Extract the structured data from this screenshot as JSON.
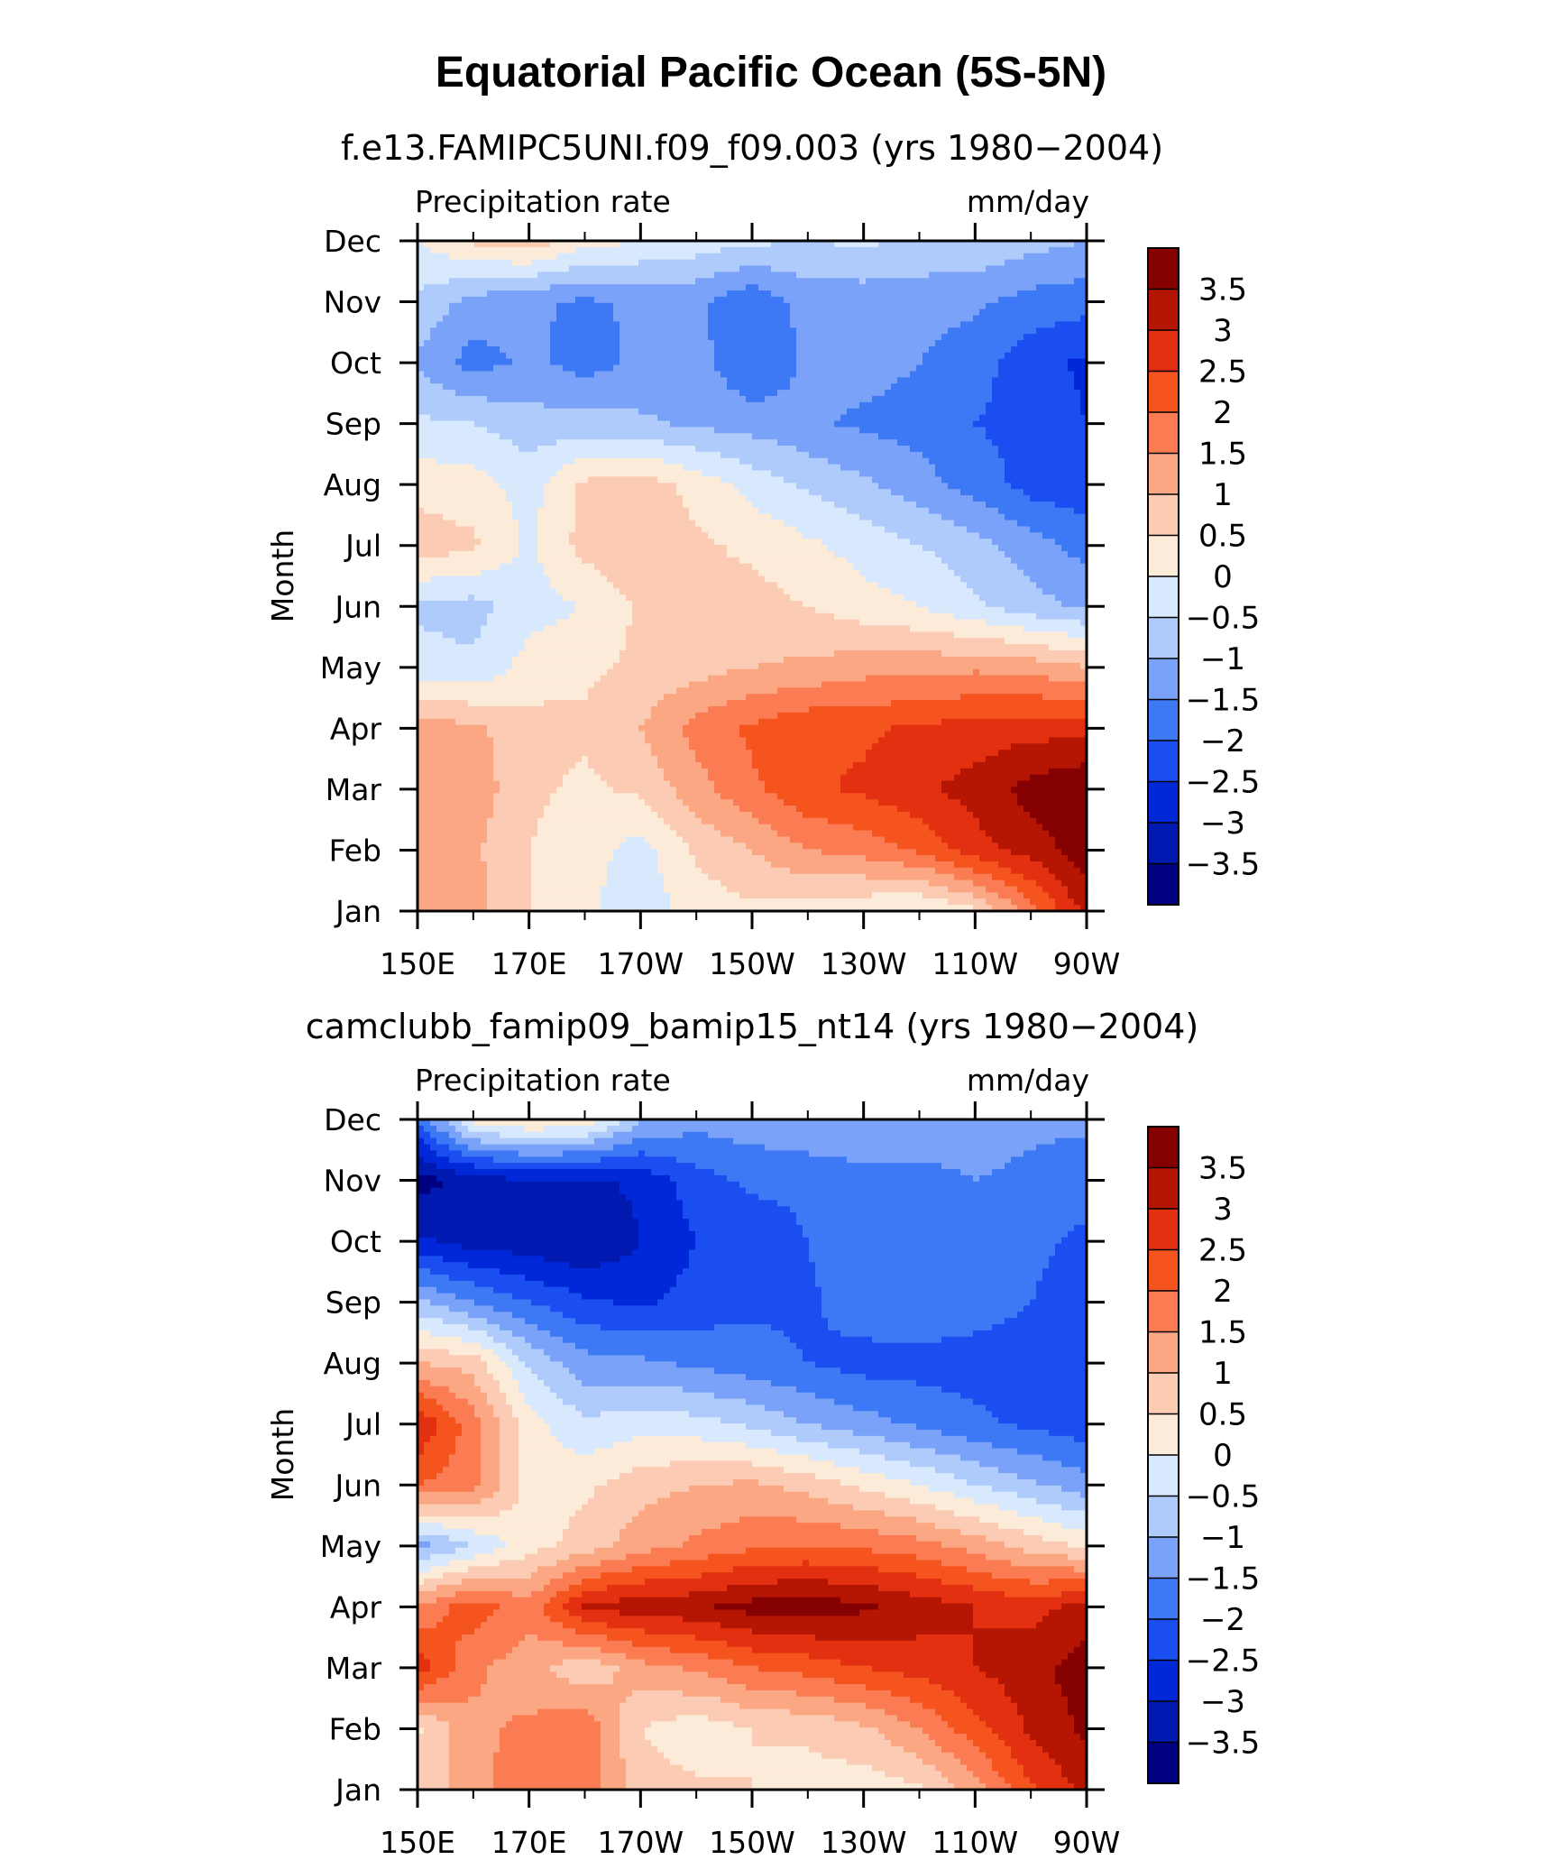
{
  "figure_title": "Equatorial Pacific Ocean (5S-5N)",
  "chart_data": [
    {
      "type": "heatmap",
      "title": "f.e13.FAMIPC5UNI.f09_f09.003 (yrs 1980−2004)",
      "left_label": "Precipitation  rate",
      "right_label": "mm/day",
      "xlabel": "",
      "ylabel": "Month",
      "x_ticks": [
        "150E",
        "170E",
        "170W",
        "150W",
        "130W",
        "110W",
        "90W"
      ],
      "y_ticks": [
        "Jan",
        "Feb",
        "Mar",
        "Apr",
        "May",
        "Jun",
        "Jul",
        "Aug",
        "Sep",
        "Oct",
        "Nov",
        "Dec"
      ],
      "x": [
        150,
        160,
        170,
        180,
        190,
        200,
        210,
        220,
        230,
        240,
        250,
        260,
        270
      ],
      "y": [
        "Jan",
        "Feb",
        "Mar",
        "Apr",
        "May",
        "Jun",
        "Jul",
        "Aug",
        "Sep",
        "Oct",
        "Nov",
        "Dec"
      ],
      "values": [
        [
          1.4,
          1.2,
          0.5,
          0.1,
          -0.3,
          0.2,
          0.4,
          0.3,
          0.1,
          -0.1,
          0.4,
          1.8,
          3.2
        ],
        [
          1.2,
          1.1,
          0.5,
          0.2,
          -0.2,
          0.6,
          1.0,
          1.5,
          1.7,
          2.1,
          2.8,
          3.2,
          3.8
        ],
        [
          1.5,
          1.3,
          0.6,
          0.4,
          0.6,
          1.3,
          1.9,
          2.4,
          2.6,
          2.9,
          3.2,
          3.7,
          4.0
        ],
        [
          1.3,
          1.1,
          0.7,
          0.6,
          1.0,
          1.7,
          2.1,
          2.4,
          2.4,
          2.6,
          2.7,
          2.8,
          2.8
        ],
        [
          -0.3,
          -0.4,
          0.2,
          0.4,
          0.6,
          0.8,
          1.0,
          1.1,
          1.3,
          1.3,
          1.4,
          1.3,
          1.0
        ],
        [
          -0.6,
          -0.7,
          -0.2,
          0.0,
          0.6,
          0.5,
          0.7,
          0.5,
          0.2,
          0.0,
          -0.4,
          -0.8,
          -1.1
        ],
        [
          0.8,
          0.6,
          -0.1,
          0.7,
          0.9,
          0.6,
          0.4,
          0.1,
          -0.2,
          -0.5,
          -0.8,
          -1.3,
          -1.7
        ],
        [
          0.3,
          0.2,
          -0.2,
          0.6,
          0.8,
          0.3,
          -0.2,
          -0.6,
          -0.9,
          -1.3,
          -1.7,
          -2.2,
          -2.3
        ],
        [
          -0.4,
          -0.5,
          -0.8,
          -0.8,
          -0.9,
          -1.1,
          -1.2,
          -1.4,
          -1.6,
          -1.7,
          -2.0,
          -2.2,
          -2.5
        ],
        [
          -1.1,
          -1.7,
          -1.4,
          -1.7,
          -1.4,
          -1.3,
          -2.0,
          -1.4,
          -1.3,
          -1.5,
          -1.8,
          -2.3,
          -2.6
        ],
        [
          -0.6,
          -1.2,
          -1.4,
          -1.6,
          -1.4,
          -1.4,
          -1.9,
          -1.3,
          -1.3,
          -1.3,
          -1.4,
          -1.7,
          -1.8
        ],
        [
          0.0,
          0.6,
          0.8,
          0.2,
          0.0,
          -0.2,
          -0.4,
          -0.5,
          -0.4,
          -0.6,
          -0.6,
          -0.8,
          -1.0
        ]
      ]
    },
    {
      "type": "heatmap",
      "title": "camclubb_famip09_bamip15_nt14 (yrs 1980−2004)",
      "left_label": "Precipitation  rate",
      "right_label": "mm/day",
      "xlabel": "",
      "ylabel": "Month",
      "x_ticks": [
        "150E",
        "170E",
        "170W",
        "150W",
        "130W",
        "110W",
        "90W"
      ],
      "y_ticks": [
        "Jan",
        "Feb",
        "Mar",
        "Apr",
        "May",
        "Jun",
        "Jul",
        "Aug",
        "Sep",
        "Oct",
        "Nov",
        "Dec"
      ],
      "x": [
        150,
        160,
        170,
        180,
        190,
        200,
        210,
        220,
        230,
        240,
        250,
        260,
        270
      ],
      "y": [
        "Jan",
        "Feb",
        "Mar",
        "Apr",
        "May",
        "Jun",
        "Jul",
        "Aug",
        "Sep",
        "Oct",
        "Nov",
        "Dec"
      ],
      "values": [
        [
          0.8,
          1.2,
          2.0,
          1.8,
          0.7,
          0.6,
          0.5,
          0.3,
          0.2,
          0.4,
          1.3,
          2.4,
          3.2
        ],
        [
          0.4,
          1.4,
          1.6,
          1.9,
          0.5,
          0.2,
          0.5,
          0.6,
          0.9,
          1.5,
          2.3,
          3.1,
          3.6
        ],
        [
          2.8,
          1.6,
          1.2,
          0.6,
          1.3,
          1.6,
          2.0,
          2.2,
          2.5,
          2.7,
          3.0,
          3.3,
          3.8
        ],
        [
          1.6,
          2.3,
          1.7,
          3.1,
          3.3,
          3.4,
          3.7,
          3.8,
          3.6,
          3.3,
          3.0,
          2.8,
          3.2
        ],
        [
          -1.2,
          -0.5,
          0.3,
          0.7,
          1.3,
          1.6,
          1.9,
          2.0,
          1.9,
          1.7,
          1.3,
          0.8,
          0.4
        ],
        [
          2.0,
          1.7,
          0.3,
          0.4,
          0.8,
          1.0,
          1.1,
          0.8,
          0.4,
          0.0,
          -0.5,
          -0.9,
          -1.3
        ],
        [
          3.0,
          1.7,
          0.2,
          -0.4,
          -0.2,
          -0.3,
          -0.6,
          -1.0,
          -1.3,
          -1.6,
          -1.9,
          -2.1,
          -2.3
        ],
        [
          1.0,
          0.8,
          -0.6,
          -1.3,
          -1.4,
          -1.6,
          -1.8,
          -2.0,
          -2.2,
          -2.2,
          -2.2,
          -2.2,
          -2.3
        ],
        [
          -0.9,
          -1.5,
          -2.0,
          -2.4,
          -2.6,
          -2.3,
          -2.1,
          -2.1,
          -1.7,
          -1.6,
          -1.8,
          -2.0,
          -2.2
        ],
        [
          -2.9,
          -3.2,
          -3.3,
          -3.5,
          -3.0,
          -2.5,
          -2.3,
          -2.0,
          -1.6,
          -1.6,
          -1.6,
          -1.9,
          -2.1
        ],
        [
          -3.7,
          -3.3,
          -3.0,
          -3.1,
          -2.9,
          -2.2,
          -1.9,
          -1.9,
          -1.6,
          -1.6,
          -1.5,
          -1.6,
          -1.8
        ],
        [
          -2.0,
          0.2,
          0.6,
          0.4,
          -0.9,
          -1.3,
          -1.2,
          -1.0,
          -1.2,
          -1.3,
          -1.3,
          -1.4,
          -1.4
        ]
      ]
    }
  ],
  "colorbar": {
    "levels": [
      -3.5,
      -3,
      -2.5,
      -2,
      -1.5,
      -1,
      -0.5,
      0,
      0.5,
      1,
      1.5,
      2,
      2.5,
      3,
      3.5
    ],
    "labels": [
      "3.5",
      "3",
      "2.5",
      "2",
      "1.5",
      "1",
      "0.5",
      "0",
      "−0.5",
      "−1",
      "−1.5",
      "−2",
      "−2.5",
      "−3",
      "−3.5"
    ],
    "colors": [
      "#000080",
      "#0019b0",
      "#0028d8",
      "#1a4ef0",
      "#3d78f5",
      "#7aa2f8",
      "#aecbfb",
      "#d8e9fd",
      "#fdebd9",
      "#fccbb3",
      "#fba784",
      "#fb7c52",
      "#f5541e",
      "#e23010",
      "#b51503",
      "#850000"
    ]
  }
}
